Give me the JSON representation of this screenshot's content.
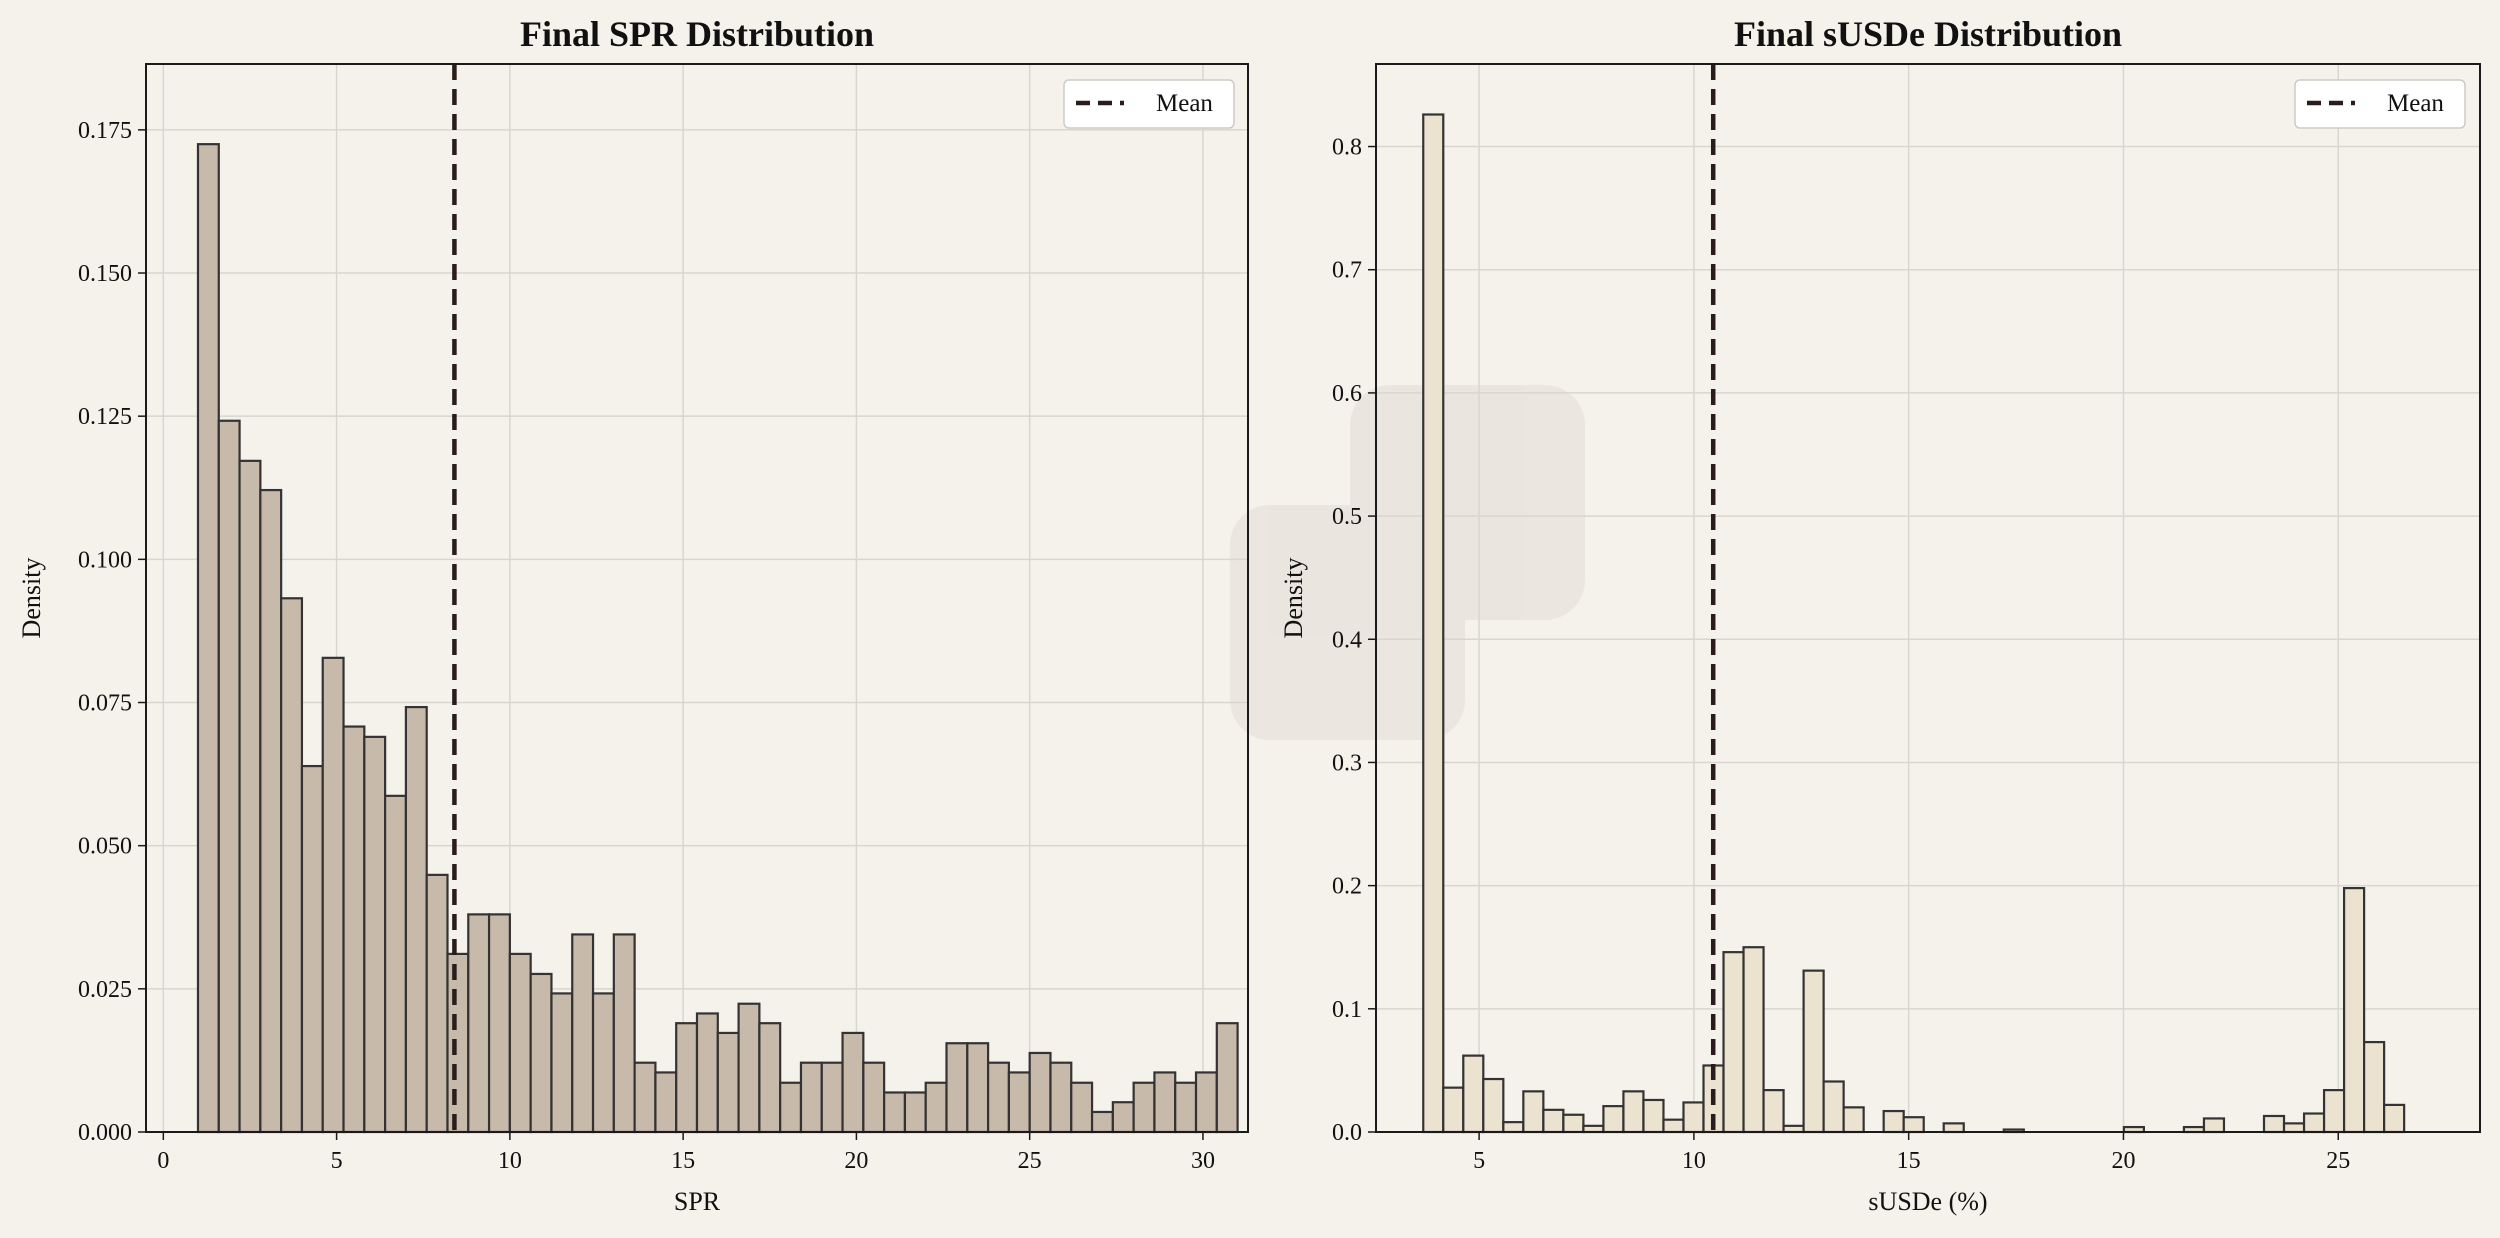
{
  "colors": {
    "background": "#f5f2ec",
    "spr_bar_fill": "#c8baab",
    "susde_bar_fill": "#ece2d0",
    "bar_edge": "#333333",
    "mean_line": "#2a1c1c",
    "grid": "#d9d5cf"
  },
  "chart_data": [
    {
      "type": "bar",
      "title": "Final SPR Distribution",
      "xlabel": "SPR",
      "ylabel": "Density",
      "xlim": [
        -0.5,
        31.3
      ],
      "ylim": [
        0,
        0.1865
      ],
      "xticks": [
        0,
        5,
        10,
        15,
        20,
        25,
        30
      ],
      "yticks": [
        0.0,
        0.025,
        0.05,
        0.075,
        0.1,
        0.125,
        0.15,
        0.175
      ],
      "ytick_labels": [
        "0.000",
        "0.025",
        "0.050",
        "0.075",
        "0.100",
        "0.125",
        "0.150",
        "0.175"
      ],
      "grid": true,
      "legend": {
        "position": "upper right",
        "entries": [
          "Mean"
        ]
      },
      "mean": 8.4,
      "bins": {
        "start": 1.0,
        "width": 0.6
      },
      "series": [
        {
          "values": [
            0.1725,
            0.1242,
            0.1172,
            0.1121,
            0.0932,
            0.0639,
            0.0828,
            0.0708,
            0.069,
            0.0587,
            0.0742,
            0.0449,
            0.0311,
            0.038,
            0.038,
            0.0311,
            0.0276,
            0.0242,
            0.0345,
            0.0242,
            0.0345,
            0.0121,
            0.0104,
            0.019,
            0.0207,
            0.0173,
            0.0224,
            0.019,
            0.0086,
            0.0121,
            0.0121,
            0.0173,
            0.0121,
            0.0069,
            0.0069,
            0.0086,
            0.0155,
            0.0155,
            0.0121,
            0.0104,
            0.0138,
            0.0121,
            0.0086,
            0.0035,
            0.0052,
            0.0086,
            0.0104,
            0.0086,
            0.0104,
            0.019
          ]
        }
      ]
    },
    {
      "type": "bar",
      "title": "Final sUSDe Distribution",
      "xlabel": "sUSDe (%)",
      "ylabel": "Density",
      "xlim": [
        2.6,
        28.3
      ],
      "ylim": [
        0,
        0.867
      ],
      "xticks": [
        5,
        10,
        15,
        20,
        25
      ],
      "yticks": [
        0.0,
        0.1,
        0.2,
        0.3,
        0.4,
        0.5,
        0.6,
        0.7,
        0.8
      ],
      "ytick_labels": [
        "0.0",
        "0.1",
        "0.2",
        "0.3",
        "0.4",
        "0.5",
        "0.6",
        "0.7",
        "0.8"
      ],
      "grid": true,
      "legend": {
        "position": "upper right",
        "entries": [
          "Mean"
        ]
      },
      "mean": 10.45,
      "bins": {
        "start": 3.7,
        "width": 0.466
      },
      "series": [
        {
          "values": [
            0.826,
            0.036,
            0.062,
            0.043,
            0.008,
            0.033,
            0.018,
            0.014,
            0.005,
            0.021,
            0.033,
            0.026,
            0.01,
            0.024,
            0.054,
            0.146,
            0.15,
            0.034,
            0.005,
            0.131,
            0.041,
            0.02,
            0.0,
            0.017,
            0.012,
            0.0,
            0.007,
            0.0,
            0.0,
            0.002,
            0.0,
            0.0,
            0.0,
            0.0,
            0.0,
            0.004,
            0.0,
            0.0,
            0.004,
            0.011,
            0.0,
            0.0,
            0.013,
            0.007,
            0.015,
            0.034,
            0.198,
            0.073,
            0.022
          ]
        }
      ]
    }
  ]
}
